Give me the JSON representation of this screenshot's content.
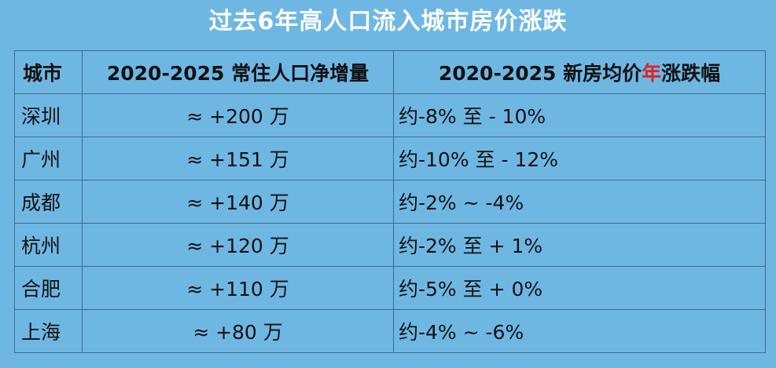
{
  "title": "过去6年高人口流入城市房价涨跌",
  "table": {
    "headers": {
      "city": "城市",
      "population": "2020-2025 常住人口净增量",
      "price_prefix": "2020-2025 新房均价",
      "price_highlight": "年",
      "price_suffix": "涨跌幅"
    },
    "rows": [
      {
        "city": "深圳",
        "population": "≈ +200 万",
        "change": "约-8% 至 - 10%"
      },
      {
        "city": "广州",
        "population": "≈ +151 万",
        "change": "约-10% 至 - 12%"
      },
      {
        "city": "成都",
        "population": "≈ +140 万",
        "change": "约-2% ~ -4%"
      },
      {
        "city": "杭州",
        "population": "≈ +120 万",
        "change": "约-2% 至 + 1%"
      },
      {
        "city": "合肥",
        "population": "≈ +110 万",
        "change": "约-5% 至 + 0%"
      },
      {
        "city": "上海",
        "population": "≈ +80 万",
        "change": "约-4% ~ -6%"
      }
    ]
  },
  "colors": {
    "background": "#6fb7e3",
    "highlight": "#e02222",
    "border": "#3d6c8a"
  }
}
